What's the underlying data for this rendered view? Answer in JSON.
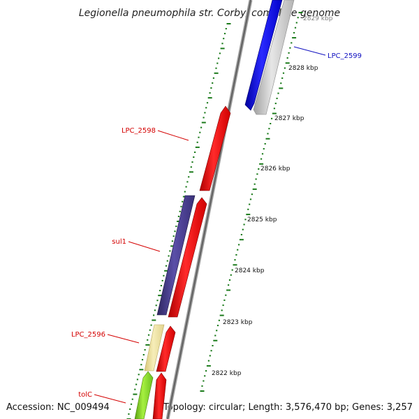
{
  "title": "Legionella pneumophila str. Corby, complete genome",
  "accession": "Accession: NC_009494",
  "summary": "Topology: circular; Length: 3,576,470 bp; Genes: 3,257",
  "colors": {
    "forward": "#ff0000",
    "reverse": "#0000ff",
    "sul1": "#4b3f8f",
    "lpc2596": "#efe3a0",
    "tolc": "#88e030",
    "pseudo": "#c8c8c8",
    "ticks": "#1a7a1a",
    "backbone": "#7a7a7a",
    "label_red": "#d40000",
    "label_blue": "#1010c0"
  },
  "scale": {
    "unit": "kbp",
    "labels": [
      "2822 kbp",
      "2823 kbp",
      "2824 kbp",
      "2825 kbp",
      "2826 kbp",
      "2827 kbp",
      "2828 kbp",
      "2829 kbp"
    ]
  },
  "genes": [
    {
      "name": "LPC_2599",
      "strand": "reverse"
    },
    {
      "name": "LPC_2598",
      "strand": "forward"
    },
    {
      "name": "sul1",
      "strand": "forward"
    },
    {
      "name": "LPC_2596",
      "strand": "forward"
    },
    {
      "name": "tolC",
      "strand": "forward"
    }
  ]
}
